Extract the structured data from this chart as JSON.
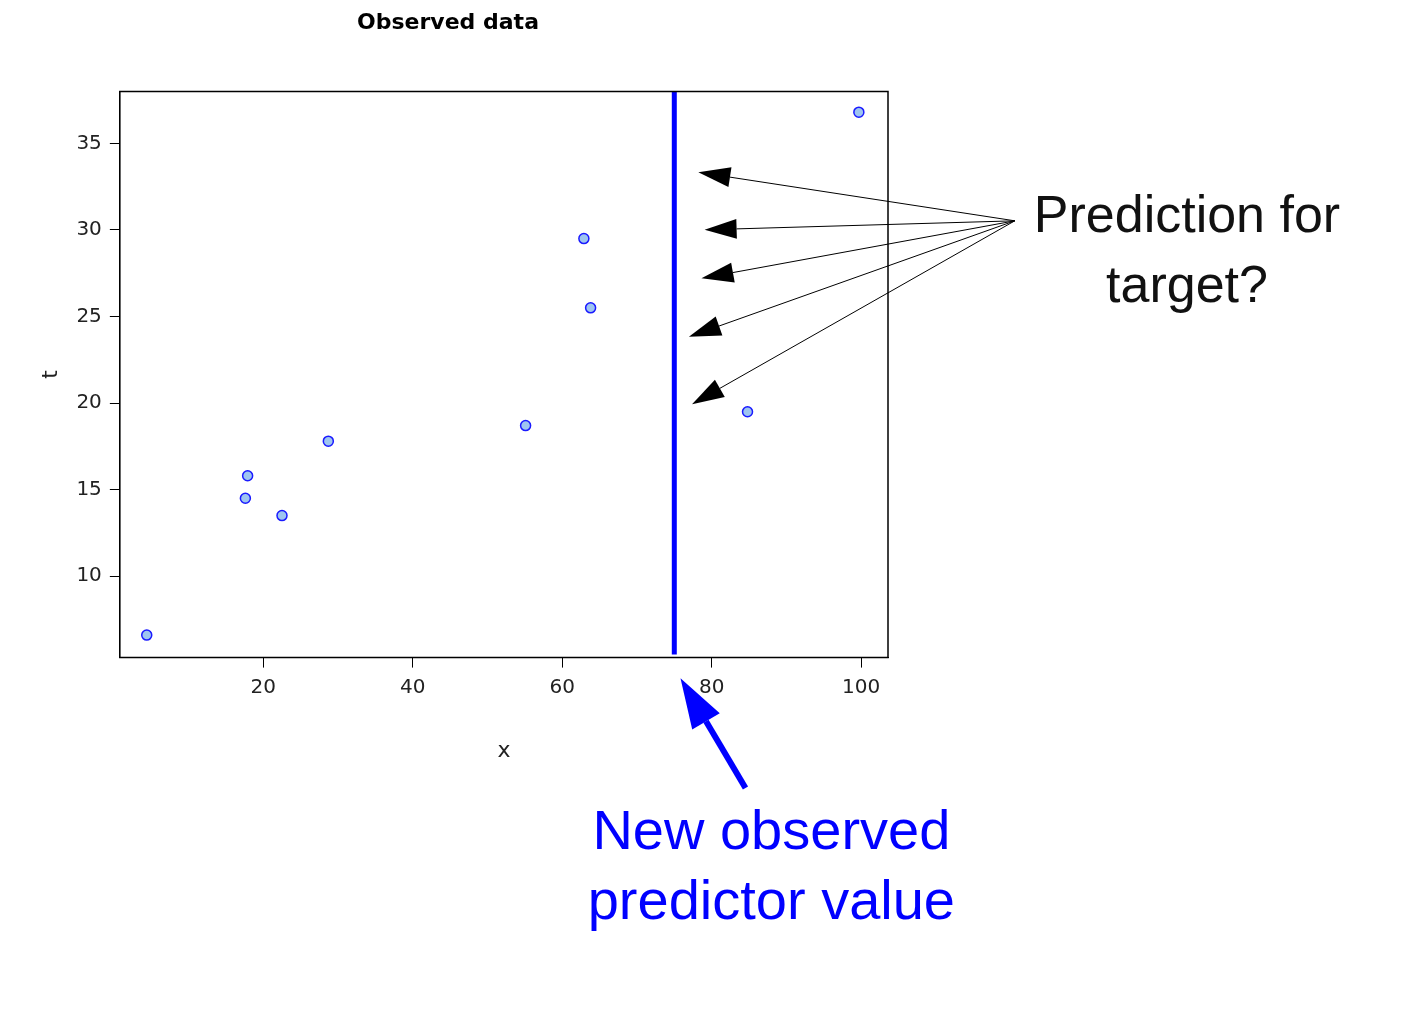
{
  "chart_data": {
    "type": "scatter",
    "title": "Observed data",
    "xlabel": "x",
    "ylabel": "t",
    "series": [
      {
        "color": "#9ec5f0",
        "x": [
          4.4,
          17.6,
          17.9,
          22.5,
          28.7,
          55.1,
          62.9,
          63.8,
          84.8,
          99.7
        ],
        "values": [
          6.6,
          14.5,
          15.8,
          13.5,
          17.8,
          18.7,
          29.5,
          25.5,
          19.5,
          36.8
        ]
      }
    ],
    "marker": "circle",
    "grid": false,
    "xlim": [
      0.8,
      103.6
    ],
    "xticks": [
      20,
      40,
      60,
      80,
      100
    ],
    "ylim": [
      5.3,
      38.0
    ],
    "yticks": [
      10,
      15,
      20,
      25,
      30,
      35
    ],
    "ref_lines": [
      {
        "axis": "x",
        "value": 75,
        "color": "#0000ff"
      }
    ],
    "annotations": [
      "Prediction for target?",
      "New observed predictor value"
    ]
  }
}
